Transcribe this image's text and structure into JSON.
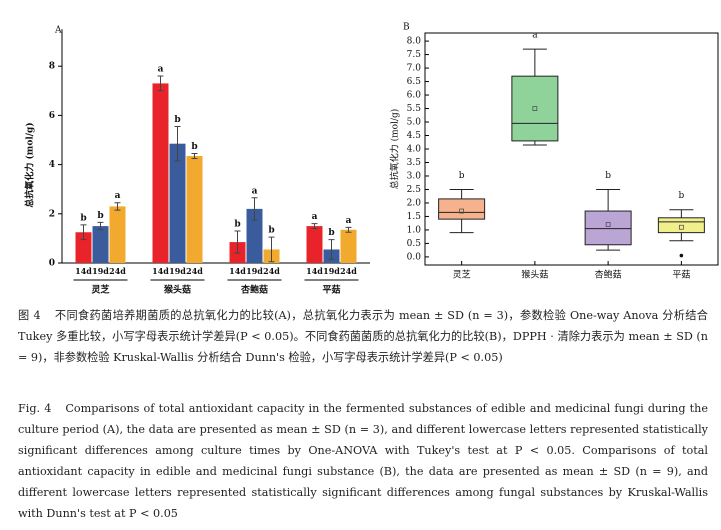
{
  "chart_data": [
    {
      "type": "bar",
      "label": "A",
      "ylabel": "总抗氧化力 (mol/g)",
      "categories": [
        "灵芝",
        "猴头菇",
        "杏鲍菇",
        "平菇"
      ],
      "series": [
        {
          "name": "14d",
          "color": "#e8242a",
          "values": [
            1.25,
            7.3,
            0.85,
            1.5
          ],
          "errors": [
            0.3,
            0.3,
            0.45,
            0.1
          ],
          "letters": [
            "b",
            "a",
            "b",
            "a"
          ]
        },
        {
          "name": "19d",
          "color": "#3b5c9c",
          "values": [
            1.5,
            4.85,
            2.2,
            0.55
          ],
          "errors": [
            0.15,
            0.7,
            0.45,
            0.4
          ],
          "letters": [
            "b",
            "b",
            "a",
            "b"
          ]
        },
        {
          "name": "24d",
          "color": "#f2aa2e",
          "values": [
            2.3,
            4.35,
            0.55,
            1.35
          ],
          "errors": [
            0.15,
            0.1,
            0.5,
            0.1
          ],
          "letters": [
            "a",
            "b",
            "b",
            "a"
          ]
        }
      ],
      "ylim": [
        0,
        9.5
      ],
      "yticks": [
        0,
        2,
        4,
        6,
        8
      ]
    },
    {
      "type": "box",
      "label": "B",
      "ylabel": "总抗氧化力 (mol/g)",
      "categories": [
        "灵芝",
        "猴头菇",
        "杏鲍菇",
        "平菇"
      ],
      "boxes": [
        {
          "whisker_low": 0.9,
          "q1": 1.4,
          "median": 1.65,
          "q3": 2.15,
          "whisker_high": 2.5,
          "mean": 1.7,
          "outliers": [],
          "color": "#f6b28c",
          "letter": "b"
        },
        {
          "whisker_low": 4.15,
          "q1": 4.3,
          "median": 4.95,
          "q3": 6.7,
          "whisker_high": 7.7,
          "mean": 5.5,
          "outliers": [],
          "color": "#8fd39b",
          "letter": "a"
        },
        {
          "whisker_low": 0.25,
          "q1": 0.45,
          "median": 1.05,
          "q3": 1.7,
          "whisker_high": 2.5,
          "mean": 1.2,
          "outliers": [],
          "color": "#bba5d5",
          "letter": "b"
        },
        {
          "whisker_low": 0.6,
          "q1": 0.9,
          "median": 1.3,
          "q3": 1.45,
          "whisker_high": 1.75,
          "mean": 1.1,
          "outliers": [
            0.05
          ],
          "color": "#f1ee8c",
          "letter": "b"
        }
      ],
      "ylim": [
        -0.3,
        8.3
      ],
      "yticks": [
        {
          "value": 0,
          "label": "0.0"
        },
        {
          "value": 0.5,
          "label": "0.5"
        },
        {
          "value": 1,
          "label": "1.0"
        },
        {
          "value": 1.5,
          "label": "1.5"
        },
        {
          "value": 2,
          "label": "2.0"
        },
        {
          "value": 2.5,
          "label": "2.5"
        },
        {
          "value": 3,
          "label": "3.0"
        },
        {
          "value": 3.5,
          "label": "3.5"
        },
        {
          "value": 4,
          "label": "4.0"
        },
        {
          "value": 4.5,
          "label": "4.5"
        },
        {
          "value": 5,
          "label": "5.0"
        },
        {
          "value": 5.5,
          "label": "5.5"
        },
        {
          "value": 6,
          "label": "6.0"
        },
        {
          "value": 6.5,
          "label": "6.5"
        },
        {
          "value": 7,
          "label": "7.0"
        },
        {
          "value": 7.5,
          "label": "7.5"
        },
        {
          "value": 8,
          "label": "8.0"
        }
      ]
    }
  ],
  "caption": {
    "zh_label": "图 4",
    "zh_text": "不同食药菌培养期菌质的总抗氧化力的比较(A)，总抗氧化力表示为 mean ± SD (n = 3)，参数检验 One-way Anova 分析结合 Tukey 多重比较，小写字母表示统计学差异(P < 0.05)。不同食药菌菌质的总抗氧化力的比较(B)，DPPH · 清除力表示为 mean ± SD (n = 9)，非参数检验 Kruskal-Wallis 分析结合 Dunn's 检验，小写字母表示统计学差异(P < 0.05)",
    "en_label": "Fig. 4",
    "en_text": "Comparisons of total antioxidant capacity in the fermented substances of edible and medicinal fungi during the culture period (A), the data are presented as mean ± SD (n = 3), and different lowercase letters represented statistically significant differences among culture times by One-ANOVA with Tukey's test at P < 0.05. Comparisons of total antioxidant capacity in edible and medicinal fungi substance (B), the data are presented as mean ± SD (n = 9), and different lowercase letters represented statistically significant differences among fungal substances by Kruskal-Wallis with Dunn's test at P < 0.05"
  }
}
